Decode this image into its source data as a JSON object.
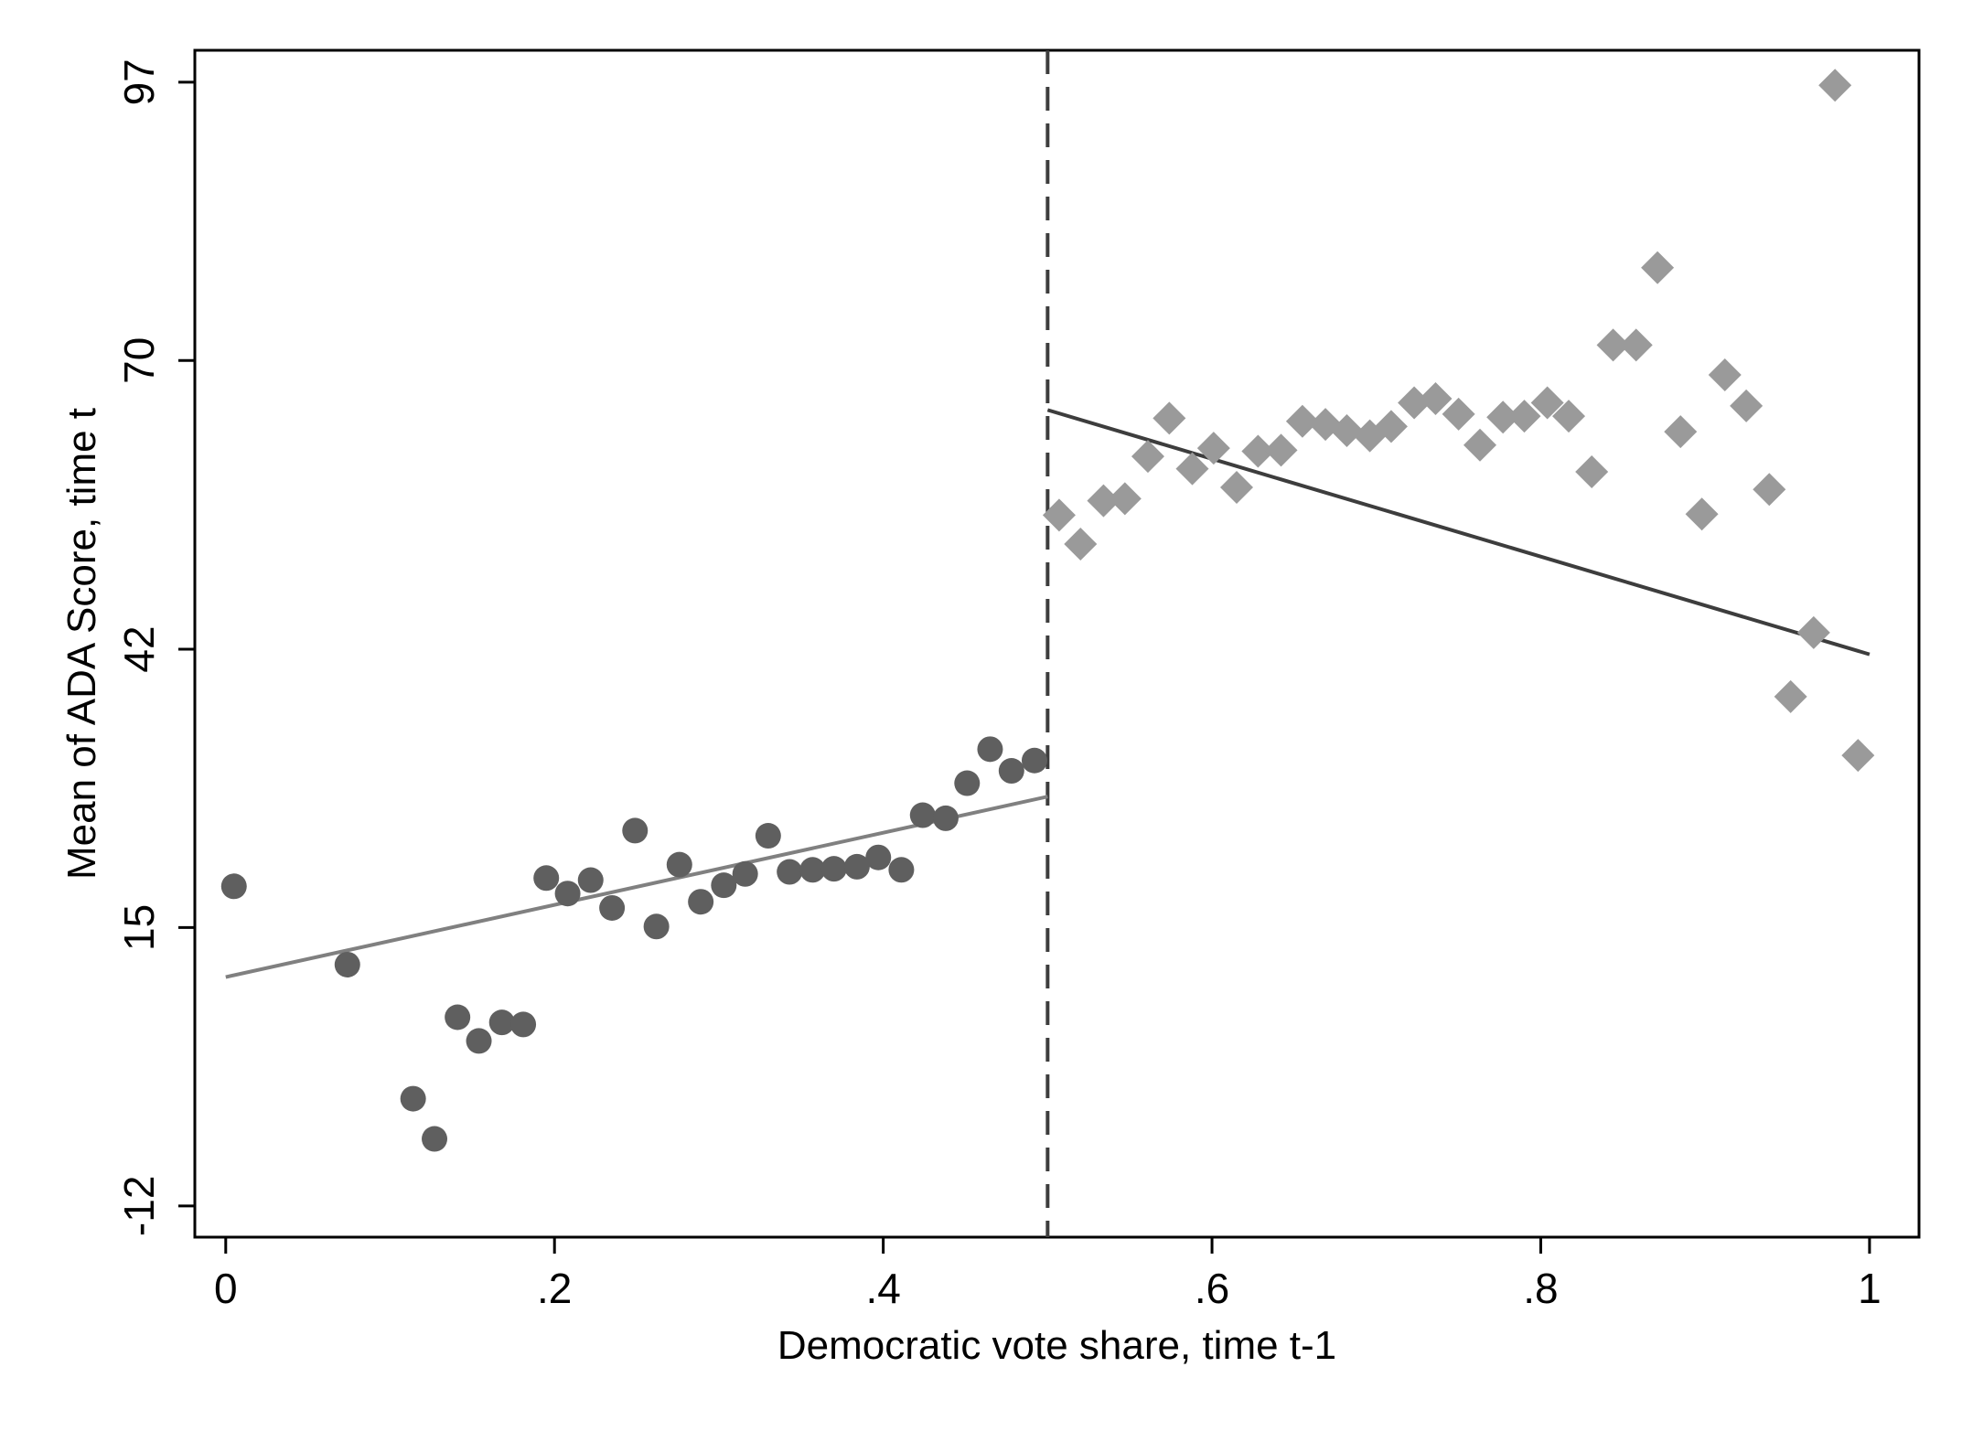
{
  "chart_data": {
    "type": "scatter",
    "title": "",
    "xlabel": "Democratic vote share, time t-1",
    "ylabel": "Mean of ADA Score, time t",
    "xlim": [
      -0.0188,
      1.0301
    ],
    "ylim": [
      -15.03,
      100.09
    ],
    "x_ticks": [
      0,
      0.2,
      0.4,
      0.6,
      0.8,
      1
    ],
    "x_tick_labels": [
      "0",
      ".2",
      ".4",
      ".6",
      ".8",
      "1"
    ],
    "y_ticks": [
      -12,
      15,
      42,
      70,
      97
    ],
    "y_tick_labels": [
      "-12",
      "15",
      "42",
      "70",
      "97"
    ],
    "grid": false,
    "legend": "none",
    "cutoff": 0.5,
    "colors": {
      "left_points": "#5f5f5f",
      "right_points": "#9a9a9a",
      "left_fit": "#808080",
      "right_fit": "#3d3d3d",
      "cutoff_line": "#3d3d3d",
      "frame": "#000000"
    },
    "series": [
      {
        "marker": "circle",
        "x": [
          0.005,
          0.074,
          0.114,
          0.127,
          0.141,
          0.154,
          0.168,
          0.181,
          0.195,
          0.208,
          0.222,
          0.235,
          0.249,
          0.262,
          0.276,
          0.289,
          0.303,
          0.316,
          0.33,
          0.343,
          0.357,
          0.37,
          0.384,
          0.397,
          0.411,
          0.424,
          0.438,
          0.451,
          0.465,
          0.478,
          0.492
        ],
        "y": [
          19.0,
          11.4,
          -1.6,
          -5.5,
          6.3,
          4.0,
          5.8,
          5.6,
          19.8,
          18.3,
          19.6,
          16.9,
          24.4,
          15.1,
          21.1,
          17.5,
          19.1,
          20.2,
          23.9,
          20.4,
          20.6,
          20.7,
          20.9,
          21.8,
          20.6,
          25.9,
          25.6,
          29.0,
          32.3,
          30.2,
          31.2
        ]
      },
      {
        "marker": "diamond",
        "x": [
          0.507,
          0.52,
          0.534,
          0.547,
          0.561,
          0.574,
          0.588,
          0.601,
          0.615,
          0.628,
          0.642,
          0.655,
          0.669,
          0.682,
          0.696,
          0.709,
          0.723,
          0.736,
          0.75,
          0.763,
          0.777,
          0.79,
          0.804,
          0.817,
          0.831,
          0.844,
          0.858,
          0.871,
          0.885,
          0.898,
          0.912,
          0.925,
          0.939,
          0.952,
          0.966,
          0.979,
          0.993
        ],
        "y": [
          55.0,
          52.2,
          56.4,
          56.6,
          60.7,
          64.4,
          59.5,
          61.5,
          57.7,
          61.2,
          61.3,
          64.1,
          63.8,
          63.2,
          62.7,
          63.6,
          65.9,
          66.3,
          64.8,
          61.8,
          64.5,
          64.6,
          65.9,
          64.6,
          59.2,
          71.5,
          71.5,
          79.0,
          63.1,
          55.1,
          68.6,
          65.6,
          57.5,
          37.4,
          43.6,
          96.7,
          31.7
        ]
      }
    ],
    "fit_lines": [
      {
        "x": [
          0.0,
          0.5
        ],
        "y": [
          10.2,
          27.7
        ]
      },
      {
        "x": [
          0.5,
          1.0
        ],
        "y": [
          65.2,
          41.5
        ]
      }
    ]
  }
}
